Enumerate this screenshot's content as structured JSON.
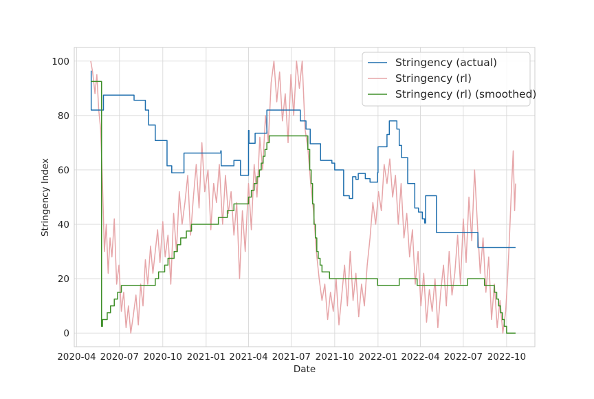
{
  "chart_data": {
    "type": "line",
    "title": "",
    "xlabel": "Date",
    "ylabel": "Stringency Index",
    "xlim": [
      "2020-03-27",
      "2022-11-30"
    ],
    "ylim": [
      -5,
      105
    ],
    "grid": true,
    "legend_position": "top-right",
    "x_ticks": [
      "2020-04",
      "2020-07",
      "2020-10",
      "2021-01",
      "2021-04",
      "2021-07",
      "2021-10",
      "2022-01",
      "2022-04",
      "2022-07",
      "2022-10"
    ],
    "y_ticks": [
      0,
      20,
      40,
      60,
      80,
      100
    ],
    "series": [
      {
        "name": "Stringency (actual)",
        "color": "#1f6fae",
        "step": true,
        "points": [
          [
            "2020-05-01",
            96.3
          ],
          [
            "2020-05-02",
            82
          ],
          [
            "2020-05-28",
            87.5
          ],
          [
            "2020-08-01",
            85.6
          ],
          [
            "2020-08-25",
            82
          ],
          [
            "2020-09-01",
            76.5
          ],
          [
            "2020-09-15",
            70.8
          ],
          [
            "2020-10-10",
            61.5
          ],
          [
            "2020-10-20",
            58.9
          ],
          [
            "2020-11-15",
            66.2
          ],
          [
            "2021-02-01",
            67
          ],
          [
            "2021-02-02",
            61.5
          ],
          [
            "2021-03-01",
            63.5
          ],
          [
            "2021-03-15",
            58
          ],
          [
            "2021-04-01",
            74.5
          ],
          [
            "2021-04-02",
            69.8
          ],
          [
            "2021-04-15",
            73.5
          ],
          [
            "2021-05-10",
            82
          ],
          [
            "2021-07-20",
            78
          ],
          [
            "2021-08-01",
            75
          ],
          [
            "2021-08-10",
            69.6
          ],
          [
            "2021-09-01",
            63.5
          ],
          [
            "2021-09-25",
            62.5
          ],
          [
            "2021-10-01",
            60
          ],
          [
            "2021-10-20",
            50.5
          ],
          [
            "2021-11-01",
            49.5
          ],
          [
            "2021-11-08",
            57.5
          ],
          [
            "2021-11-15",
            56.5
          ],
          [
            "2021-11-20",
            58.7
          ],
          [
            "2021-12-05",
            56.8
          ],
          [
            "2021-12-15",
            55.5
          ],
          [
            "2021-12-31",
            59
          ],
          [
            "2022-01-01",
            68.5
          ],
          [
            "2022-01-20",
            73
          ],
          [
            "2022-01-25",
            78
          ],
          [
            "2022-02-10",
            75
          ],
          [
            "2022-02-15",
            69
          ],
          [
            "2022-02-20",
            64.5
          ],
          [
            "2022-03-05",
            55
          ],
          [
            "2022-03-20",
            46
          ],
          [
            "2022-03-28",
            44.5
          ],
          [
            "2022-04-05",
            42
          ],
          [
            "2022-04-10",
            40.5
          ],
          [
            "2022-04-12",
            50.5
          ],
          [
            "2022-05-05",
            37
          ],
          [
            "2022-08-01",
            31.5
          ],
          [
            "2022-10-20",
            31.5
          ]
        ]
      },
      {
        "name": "Stringency (rl)",
        "color": "#e6a5a8",
        "step": false,
        "points": [
          [
            "2020-05-01",
            100
          ],
          [
            "2020-05-05",
            96
          ],
          [
            "2020-05-10",
            88
          ],
          [
            "2020-05-14",
            95
          ],
          [
            "2020-05-18",
            82
          ],
          [
            "2020-05-22",
            75
          ],
          [
            "2020-05-26",
            55
          ],
          [
            "2020-05-30",
            30
          ],
          [
            "2020-06-03",
            40
          ],
          [
            "2020-06-07",
            22
          ],
          [
            "2020-06-11",
            35
          ],
          [
            "2020-06-15",
            28
          ],
          [
            "2020-06-20",
            42
          ],
          [
            "2020-06-25",
            18
          ],
          [
            "2020-06-30",
            25
          ],
          [
            "2020-07-05",
            8
          ],
          [
            "2020-07-10",
            15
          ],
          [
            "2020-07-15",
            2
          ],
          [
            "2020-07-20",
            10
          ],
          [
            "2020-07-25",
            0
          ],
          [
            "2020-07-30",
            6
          ],
          [
            "2020-08-05",
            14
          ],
          [
            "2020-08-10",
            3
          ],
          [
            "2020-08-15",
            18
          ],
          [
            "2020-08-20",
            10
          ],
          [
            "2020-08-25",
            27
          ],
          [
            "2020-08-30",
            18
          ],
          [
            "2020-09-05",
            32
          ],
          [
            "2020-09-10",
            22
          ],
          [
            "2020-09-15",
            30
          ],
          [
            "2020-09-20",
            38
          ],
          [
            "2020-09-25",
            26
          ],
          [
            "2020-10-01",
            41
          ],
          [
            "2020-10-06",
            28
          ],
          [
            "2020-10-12",
            36
          ],
          [
            "2020-10-18",
            18
          ],
          [
            "2020-10-24",
            44
          ],
          [
            "2020-10-30",
            30
          ],
          [
            "2020-11-05",
            52
          ],
          [
            "2020-11-11",
            40
          ],
          [
            "2020-11-17",
            48
          ],
          [
            "2020-11-23",
            58
          ],
          [
            "2020-11-29",
            36
          ],
          [
            "2020-12-05",
            50
          ],
          [
            "2020-12-11",
            62
          ],
          [
            "2020-12-17",
            46
          ],
          [
            "2020-12-23",
            70
          ],
          [
            "2020-12-29",
            52
          ],
          [
            "2021-01-05",
            60
          ],
          [
            "2021-01-11",
            38
          ],
          [
            "2021-01-17",
            55
          ],
          [
            "2021-01-23",
            48
          ],
          [
            "2021-01-29",
            62
          ],
          [
            "2021-02-05",
            40
          ],
          [
            "2021-02-11",
            58
          ],
          [
            "2021-02-17",
            44
          ],
          [
            "2021-02-23",
            52
          ],
          [
            "2021-03-01",
            36
          ],
          [
            "2021-03-07",
            48
          ],
          [
            "2021-03-13",
            20
          ],
          [
            "2021-03-19",
            45
          ],
          [
            "2021-03-25",
            30
          ],
          [
            "2021-04-01",
            55
          ],
          [
            "2021-04-07",
            38
          ],
          [
            "2021-04-13",
            62
          ],
          [
            "2021-04-19",
            50
          ],
          [
            "2021-04-25",
            72
          ],
          [
            "2021-05-01",
            60
          ],
          [
            "2021-05-07",
            80
          ],
          [
            "2021-05-13",
            70
          ],
          [
            "2021-05-19",
            92
          ],
          [
            "2021-05-25",
            100
          ],
          [
            "2021-05-31",
            85
          ],
          [
            "2021-06-06",
            96
          ],
          [
            "2021-06-12",
            78
          ],
          [
            "2021-06-18",
            88
          ],
          [
            "2021-06-24",
            70
          ],
          [
            "2021-06-30",
            95
          ],
          [
            "2021-07-06",
            80
          ],
          [
            "2021-07-12",
            100
          ],
          [
            "2021-07-18",
            90
          ],
          [
            "2021-07-24",
            100
          ],
          [
            "2021-07-30",
            75
          ],
          [
            "2021-08-05",
            68
          ],
          [
            "2021-08-11",
            55
          ],
          [
            "2021-08-17",
            45
          ],
          [
            "2021-08-23",
            30
          ],
          [
            "2021-08-29",
            20
          ],
          [
            "2021-09-04",
            12
          ],
          [
            "2021-09-10",
            18
          ],
          [
            "2021-09-16",
            5
          ],
          [
            "2021-09-22",
            15
          ],
          [
            "2021-09-28",
            8
          ],
          [
            "2021-10-04",
            20
          ],
          [
            "2021-10-10",
            3
          ],
          [
            "2021-10-16",
            14
          ],
          [
            "2021-10-22",
            25
          ],
          [
            "2021-10-28",
            10
          ],
          [
            "2021-11-03",
            30
          ],
          [
            "2021-11-09",
            12
          ],
          [
            "2021-11-15",
            22
          ],
          [
            "2021-11-21",
            6
          ],
          [
            "2021-11-27",
            18
          ],
          [
            "2021-12-03",
            10
          ],
          [
            "2021-12-09",
            25
          ],
          [
            "2021-12-15",
            35
          ],
          [
            "2021-12-21",
            48
          ],
          [
            "2021-12-27",
            40
          ],
          [
            "2022-01-02",
            52
          ],
          [
            "2022-01-08",
            45
          ],
          [
            "2022-01-14",
            62
          ],
          [
            "2022-01-20",
            55
          ],
          [
            "2022-01-26",
            64
          ],
          [
            "2022-02-01",
            50
          ],
          [
            "2022-02-07",
            58
          ],
          [
            "2022-02-13",
            40
          ],
          [
            "2022-02-19",
            55
          ],
          [
            "2022-02-25",
            35
          ],
          [
            "2022-03-03",
            44
          ],
          [
            "2022-03-09",
            28
          ],
          [
            "2022-03-15",
            38
          ],
          [
            "2022-03-21",
            18
          ],
          [
            "2022-03-27",
            30
          ],
          [
            "2022-04-02",
            10
          ],
          [
            "2022-04-08",
            22
          ],
          [
            "2022-04-14",
            4
          ],
          [
            "2022-04-20",
            16
          ],
          [
            "2022-04-26",
            8
          ],
          [
            "2022-05-02",
            20
          ],
          [
            "2022-05-08",
            2
          ],
          [
            "2022-05-14",
            15
          ],
          [
            "2022-05-20",
            25
          ],
          [
            "2022-05-26",
            10
          ],
          [
            "2022-06-01",
            30
          ],
          [
            "2022-06-07",
            14
          ],
          [
            "2022-06-13",
            22
          ],
          [
            "2022-06-19",
            36
          ],
          [
            "2022-06-25",
            18
          ],
          [
            "2022-07-01",
            42
          ],
          [
            "2022-07-07",
            26
          ],
          [
            "2022-07-13",
            50
          ],
          [
            "2022-07-19",
            34
          ],
          [
            "2022-07-25",
            60
          ],
          [
            "2022-07-31",
            40
          ],
          [
            "2022-08-06",
            22
          ],
          [
            "2022-08-12",
            35
          ],
          [
            "2022-08-18",
            15
          ],
          [
            "2022-08-24",
            28
          ],
          [
            "2022-08-30",
            5
          ],
          [
            "2022-09-05",
            18
          ],
          [
            "2022-09-11",
            2
          ],
          [
            "2022-09-17",
            12
          ],
          [
            "2022-09-23",
            0
          ],
          [
            "2022-09-29",
            8
          ],
          [
            "2022-10-03",
            20
          ],
          [
            "2022-10-07",
            35
          ],
          [
            "2022-10-11",
            52
          ],
          [
            "2022-10-15",
            67
          ],
          [
            "2022-10-18",
            45
          ],
          [
            "2022-10-20",
            55
          ]
        ]
      },
      {
        "name": "Stringency (rl) (smoothed)",
        "color": "#3f8f29",
        "step": true,
        "points": [
          [
            "2020-05-01",
            92.5
          ],
          [
            "2020-05-24",
            2.5
          ],
          [
            "2020-05-26",
            5
          ],
          [
            "2020-06-05",
            7.5
          ],
          [
            "2020-06-12",
            10
          ],
          [
            "2020-06-20",
            12.5
          ],
          [
            "2020-06-27",
            15
          ],
          [
            "2020-07-05",
            17.5
          ],
          [
            "2020-09-15",
            20
          ],
          [
            "2020-09-22",
            22.5
          ],
          [
            "2020-10-05",
            25
          ],
          [
            "2020-10-12",
            27.5
          ],
          [
            "2020-10-25",
            30
          ],
          [
            "2020-11-01",
            32.5
          ],
          [
            "2020-11-08",
            35
          ],
          [
            "2020-11-20",
            37.5
          ],
          [
            "2020-12-01",
            40
          ],
          [
            "2021-01-27",
            42.5
          ],
          [
            "2021-02-15",
            45
          ],
          [
            "2021-03-01",
            47.5
          ],
          [
            "2021-04-01",
            50
          ],
          [
            "2021-04-07",
            52.5
          ],
          [
            "2021-04-13",
            55
          ],
          [
            "2021-04-19",
            57.5
          ],
          [
            "2021-04-24",
            60
          ],
          [
            "2021-04-28",
            62.5
          ],
          [
            "2021-05-02",
            65
          ],
          [
            "2021-05-06",
            67.5
          ],
          [
            "2021-05-10",
            70
          ],
          [
            "2021-05-15",
            72.5
          ],
          [
            "2021-08-05",
            67.5
          ],
          [
            "2021-08-09",
            60
          ],
          [
            "2021-08-12",
            55
          ],
          [
            "2021-08-15",
            47.5
          ],
          [
            "2021-08-18",
            40
          ],
          [
            "2021-08-21",
            35
          ],
          [
            "2021-08-24",
            30
          ],
          [
            "2021-08-27",
            27.5
          ],
          [
            "2021-08-31",
            25
          ],
          [
            "2021-09-04",
            22.5
          ],
          [
            "2021-09-20",
            20
          ],
          [
            "2021-12-31",
            17.5
          ],
          [
            "2022-02-15",
            20
          ],
          [
            "2022-03-25",
            17.5
          ],
          [
            "2022-07-10",
            20
          ],
          [
            "2022-08-15",
            17.5
          ],
          [
            "2022-09-05",
            15
          ],
          [
            "2022-09-10",
            12.5
          ],
          [
            "2022-09-14",
            10
          ],
          [
            "2022-09-18",
            7.5
          ],
          [
            "2022-09-22",
            5
          ],
          [
            "2022-09-26",
            2.5
          ],
          [
            "2022-10-01",
            0
          ],
          [
            "2022-10-20",
            0
          ]
        ]
      }
    ]
  }
}
